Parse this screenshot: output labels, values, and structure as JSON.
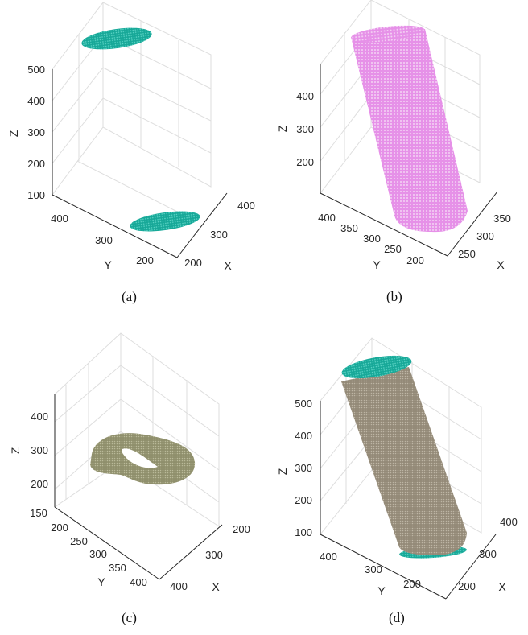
{
  "colors": {
    "teal": "#1fb5a5",
    "magenta": "#e58be6",
    "olive": "#9a9a78",
    "taupe": "#9c9382",
    "grid": "#dedede",
    "axis": "#262626"
  },
  "panels": [
    {
      "caption": "(a)",
      "zlabel": "Z",
      "ylabel": "Y",
      "xlabel": "X",
      "zticks": [
        "500",
        "400",
        "300",
        "200",
        "100"
      ],
      "yticks": [
        "400",
        "300",
        "200"
      ],
      "xticks": [
        "400",
        "300",
        "200"
      ]
    },
    {
      "caption": "(b)",
      "zlabel": "Z",
      "ylabel": "Y",
      "xlabel": "X",
      "zticks": [
        "400",
        "300",
        "200"
      ],
      "yticks": [
        "400",
        "350",
        "300",
        "250",
        "200"
      ],
      "xticks": [
        "350",
        "300",
        "250"
      ]
    },
    {
      "caption": "(c)",
      "zlabel": "Z",
      "ylabel": "Y",
      "xlabel": "X",
      "zticks": [
        "400",
        "300",
        "200"
      ],
      "yticks": [
        "150",
        "200",
        "250",
        "300",
        "350",
        "400"
      ],
      "xticks": [
        "200",
        "300",
        "400"
      ]
    },
    {
      "caption": "(d)",
      "zlabel": "Z",
      "ylabel": "Y",
      "xlabel": "X",
      "zticks": [
        "500",
        "400",
        "300",
        "200",
        "100"
      ],
      "yticks": [
        "400",
        "300",
        "200"
      ],
      "xticks": [
        "400",
        "300",
        "200"
      ]
    }
  ]
}
